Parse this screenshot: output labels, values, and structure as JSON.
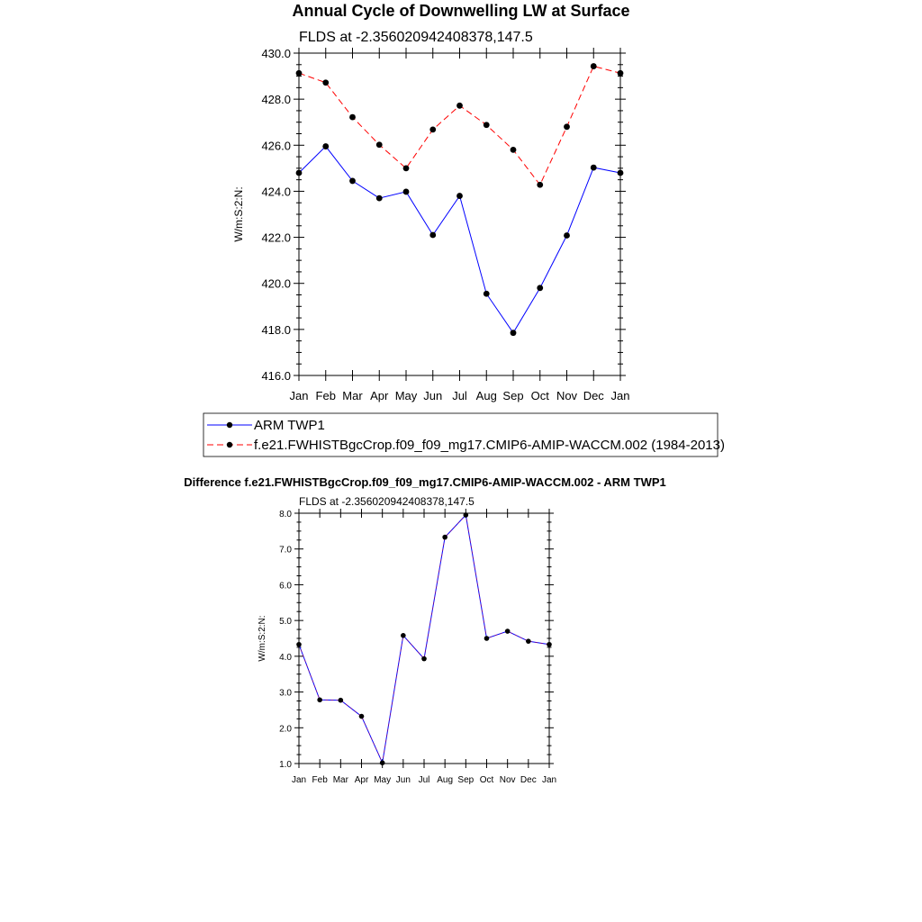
{
  "chart_data": [
    {
      "type": "line",
      "title": "Annual Cycle of Downwelling LW at Surface",
      "subtitle": "FLDS at -2.356020942408378,147.5",
      "ylabel": "W/m:S:2:N:",
      "xlabel": "",
      "categories": [
        "Jan",
        "Feb",
        "Mar",
        "Apr",
        "May",
        "Jun",
        "Jul",
        "Aug",
        "Sep",
        "Oct",
        "Nov",
        "Dec",
        "Jan"
      ],
      "ylim": [
        416.0,
        430.0
      ],
      "yticks": [
        "416.0",
        "418.0",
        "420.0",
        "422.0",
        "424.0",
        "426.0",
        "428.0",
        "430.0"
      ],
      "ytick_values": [
        416,
        418,
        420,
        422,
        424,
        426,
        428,
        430
      ],
      "grid": false,
      "legend_position": "bottom",
      "series": [
        {
          "name": "ARM TWP1",
          "color": "#0000ff",
          "dash": "solid",
          "values": [
            424.8,
            425.95,
            424.45,
            423.7,
            423.98,
            422.1,
            423.8,
            419.55,
            417.85,
            419.8,
            422.08,
            425.03,
            424.8
          ]
        },
        {
          "name": "f.e21.FWHISTBgcCrop.f09_f09_mg17.CMIP6-AMIP-WACCM.002 (1984-2013)",
          "color": "#ff0000",
          "dash": "dashed",
          "values": [
            429.13,
            428.72,
            427.22,
            426.02,
            425.0,
            426.68,
            427.72,
            426.88,
            425.8,
            424.28,
            426.8,
            429.43,
            429.13
          ]
        }
      ]
    },
    {
      "type": "line",
      "title": "Difference f.e21.FWHISTBgcCrop.f09_f09_mg17.CMIP6-AMIP-WACCM.002 - ARM TWP1",
      "subtitle": "FLDS at -2.356020942408378,147.5",
      "ylabel": "W/m:S:2:N:",
      "xlabel": "",
      "categories": [
        "Jan",
        "Feb",
        "Mar",
        "Apr",
        "May",
        "Jun",
        "Jul",
        "Aug",
        "Sep",
        "Oct",
        "Nov",
        "Dec",
        "Jan"
      ],
      "ylim": [
        1.0,
        8.0
      ],
      "yticks": [
        "1.0",
        "2.0",
        "3.0",
        "4.0",
        "5.0",
        "6.0",
        "7.0",
        "8.0"
      ],
      "ytick_values": [
        1,
        2,
        3,
        4,
        5,
        6,
        7,
        8
      ],
      "grid": false,
      "series": [
        {
          "color": "#0000ff",
          "overlay_color": "#ff0000",
          "values": [
            4.33,
            2.78,
            2.77,
            2.32,
            1.02,
            4.58,
            3.93,
            7.33,
            7.95,
            4.5,
            4.7,
            4.42,
            4.33
          ]
        }
      ]
    }
  ]
}
